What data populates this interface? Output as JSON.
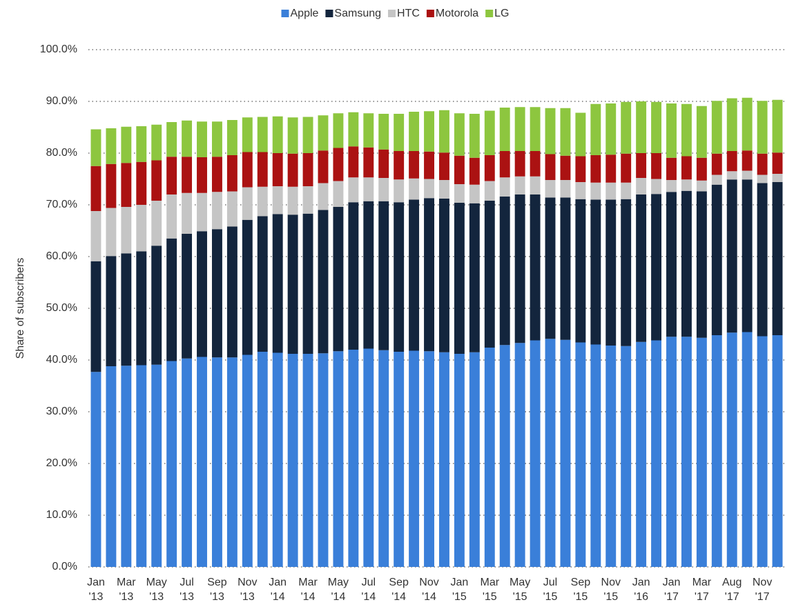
{
  "chart_data": {
    "type": "stacked_bar",
    "y_label": "Share of subscribers",
    "categories": [
      "Jan '13",
      null,
      "Mar '13",
      null,
      "May '13",
      null,
      "Jul '13",
      null,
      "Sep '13",
      null,
      "Nov '13",
      null,
      "Jan '14",
      null,
      "Mar '14",
      null,
      "May '14",
      null,
      "Jul '14",
      null,
      "Sep '14",
      null,
      "Nov '14",
      null,
      "Jan '15",
      null,
      "Mar '15",
      null,
      "May '15",
      null,
      "Jul '15",
      null,
      "Sep '15",
      null,
      "Nov '15",
      null,
      "Jan '16",
      null,
      "Jan '17",
      null,
      "Mar '17",
      null,
      "Aug '17",
      null,
      "Nov '17",
      null
    ],
    "series": [
      {
        "name": "Apple",
        "color": "#3a7fd9",
        "values": [
          37.7,
          38.8,
          38.9,
          39.0,
          39.1,
          39.8,
          40.3,
          40.6,
          40.5,
          40.5,
          41.0,
          41.6,
          41.4,
          41.2,
          41.2,
          41.3,
          41.7,
          42.0,
          42.2,
          41.9,
          41.6,
          41.8,
          41.7,
          41.5,
          41.2,
          41.5,
          42.4,
          42.9,
          43.3,
          43.8,
          44.1,
          43.9,
          43.4,
          43.0,
          42.8,
          42.7,
          43.5,
          43.8,
          44.5,
          44.5,
          44.3,
          44.8,
          45.3,
          45.4,
          44.6,
          44.8
        ]
      },
      {
        "name": "Samsung",
        "color": "#13253d",
        "values": [
          21.4,
          21.3,
          21.7,
          22.0,
          23.0,
          23.7,
          24.1,
          24.3,
          24.8,
          25.3,
          26.1,
          26.2,
          26.8,
          26.9,
          27.1,
          27.7,
          27.9,
          28.5,
          28.5,
          28.8,
          28.9,
          29.2,
          29.6,
          29.7,
          29.2,
          28.8,
          28.4,
          28.7,
          28.7,
          28.2,
          27.3,
          27.5,
          27.7,
          28.0,
          28.2,
          28.4,
          28.5,
          28.3,
          28.0,
          28.2,
          28.3,
          29.1,
          29.6,
          29.5,
          29.6,
          29.6
        ]
      },
      {
        "name": "HTC",
        "color": "#c5c5c5",
        "values": [
          9.7,
          9.3,
          9.0,
          9.0,
          8.7,
          8.5,
          7.9,
          7.4,
          7.2,
          6.8,
          6.3,
          5.7,
          5.4,
          5.4,
          5.3,
          5.2,
          5.0,
          4.8,
          4.6,
          4.5,
          4.4,
          4.1,
          3.7,
          3.6,
          3.6,
          3.6,
          3.8,
          3.7,
          3.5,
          3.5,
          3.4,
          3.4,
          3.3,
          3.3,
          3.3,
          3.2,
          3.2,
          2.9,
          2.3,
          2.2,
          2.1,
          1.9,
          1.6,
          1.7,
          1.6,
          1.6
        ]
      },
      {
        "name": "Motorola",
        "color": "#ab1212",
        "values": [
          8.7,
          8.5,
          8.5,
          8.3,
          7.8,
          7.3,
          7.0,
          6.9,
          6.8,
          7.0,
          6.8,
          6.7,
          6.4,
          6.4,
          6.4,
          6.3,
          6.4,
          6.0,
          5.8,
          5.5,
          5.5,
          5.3,
          5.3,
          5.3,
          5.5,
          5.2,
          5.0,
          5.1,
          4.9,
          4.9,
          5.0,
          4.7,
          5.0,
          5.3,
          5.4,
          5.6,
          4.8,
          5.0,
          4.3,
          4.5,
          4.4,
          4.1,
          3.9,
          3.9,
          4.1,
          4.1
        ]
      },
      {
        "name": "LG",
        "color": "#8dc63f",
        "values": [
          7.1,
          6.9,
          7.0,
          6.9,
          6.9,
          6.7,
          7.0,
          6.9,
          6.8,
          6.8,
          6.7,
          6.8,
          7.1,
          7.0,
          7.0,
          6.8,
          6.7,
          6.6,
          6.6,
          6.9,
          7.2,
          7.6,
          7.8,
          8.2,
          8.2,
          8.5,
          8.6,
          8.4,
          8.5,
          8.5,
          8.9,
          9.2,
          8.4,
          9.9,
          9.9,
          10.0,
          10.0,
          9.9,
          10.5,
          10.1,
          10.0,
          10.2,
          10.2,
          10.2,
          10.2,
          10.2
        ]
      }
    ],
    "ylim": [
      0,
      100
    ],
    "yticks": [
      {
        "value": 0,
        "label": "0.0%"
      },
      {
        "value": 10,
        "label": "10.0%"
      },
      {
        "value": 20,
        "label": "20.0%"
      },
      {
        "value": 30,
        "label": "30.0%"
      },
      {
        "value": 40,
        "label": "40.0%"
      },
      {
        "value": 50,
        "label": "50.0%"
      },
      {
        "value": 60,
        "label": "60.0%"
      },
      {
        "value": 70,
        "label": "70.0%"
      },
      {
        "value": 80,
        "label": "80.0%"
      },
      {
        "value": 90,
        "label": "90.0%"
      },
      {
        "value": 100,
        "label": "100.0%"
      }
    ],
    "grid": true,
    "legend": "top"
  }
}
